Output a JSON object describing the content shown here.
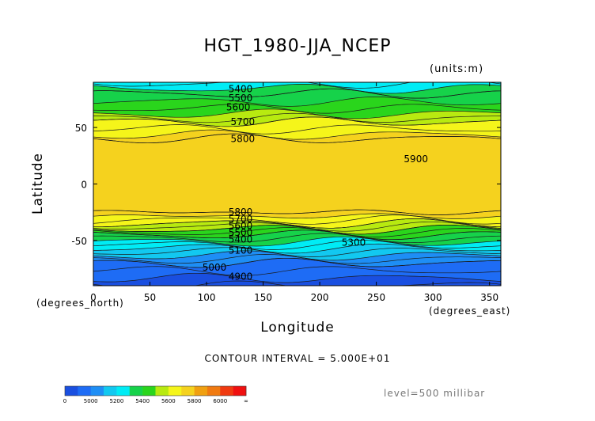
{
  "chart_data": {
    "type": "heatmap",
    "title": "HGT_1980-JJA_NCEP",
    "units_note": "(units:m)",
    "xlabel": "Longitude",
    "ylabel": "Latitude",
    "x_axis_note": "(degrees_east)",
    "y_axis_note": "(degrees_north)",
    "xlim": [
      0,
      360
    ],
    "ylim": [
      -90,
      90
    ],
    "x_ticks": [
      0,
      50,
      100,
      150,
      200,
      250,
      300,
      350
    ],
    "y_ticks": [
      -50,
      0,
      50
    ],
    "contour_interval_text": "CONTOUR INTERVAL = 5.000E+01",
    "level_text": "level=500 millibar",
    "color_bins": [
      {
        "from": 4900,
        "to": 5000,
        "color": "#1a4fe0"
      },
      {
        "from": 5000,
        "to": 5100,
        "color": "#1e6cf5"
      },
      {
        "from": 5100,
        "to": 5200,
        "color": "#1e8ef5"
      },
      {
        "from": 5200,
        "to": 5300,
        "color": "#12c8f0"
      },
      {
        "from": 5300,
        "to": 5400,
        "color": "#00ecf5"
      },
      {
        "from": 5400,
        "to": 5500,
        "color": "#16d24a"
      },
      {
        "from": 5500,
        "to": 5600,
        "color": "#2ad51c"
      },
      {
        "from": 5600,
        "to": 5700,
        "color": "#b8ea10"
      },
      {
        "from": 5700,
        "to": 5800,
        "color": "#f5f51a"
      },
      {
        "from": 5800,
        "to": 5900,
        "color": "#f5d21e"
      },
      {
        "from": 5900,
        "to": 6000,
        "color": "#f0a010"
      },
      {
        "from": 6000,
        "to": 6100,
        "color": "#f07a10"
      },
      {
        "from": 6100,
        "to": 6200,
        "color": "#f03a10"
      },
      {
        "from": 6200,
        "to": 6300,
        "color": "#f01010"
      }
    ],
    "zonal_profile": [
      {
        "lat": 90,
        "value": 5340
      },
      {
        "lat": 80,
        "value": 5450
      },
      {
        "lat": 70,
        "value": 5520
      },
      {
        "lat": 60,
        "value": 5620
      },
      {
        "lat": 55,
        "value": 5700
      },
      {
        "lat": 45,
        "value": 5780
      },
      {
        "lat": 40,
        "value": 5850
      },
      {
        "lat": 0,
        "value": 5880
      },
      {
        "lat": -25,
        "value": 5850
      },
      {
        "lat": -30,
        "value": 5780
      },
      {
        "lat": -35,
        "value": 5700
      },
      {
        "lat": -40,
        "value": 5600
      },
      {
        "lat": -45,
        "value": 5500
      },
      {
        "lat": -50,
        "value": 5420
      },
      {
        "lat": -55,
        "value": 5330
      },
      {
        "lat": -62,
        "value": 5220
      },
      {
        "lat": -70,
        "value": 5100
      },
      {
        "lat": -90,
        "value": 4950
      }
    ],
    "contour_labels": [
      {
        "text": "5400",
        "lon": 130,
        "lat": 84
      },
      {
        "text": "5500",
        "lon": 130,
        "lat": 76
      },
      {
        "text": "5600",
        "lon": 128,
        "lat": 68
      },
      {
        "text": "5700",
        "lon": 132,
        "lat": 55
      },
      {
        "text": "5800",
        "lon": 132,
        "lat": 40
      },
      {
        "text": "5900",
        "lon": 285,
        "lat": 22
      },
      {
        "text": "5800",
        "lon": 130,
        "lat": -25
      },
      {
        "text": "5700",
        "lon": 130,
        "lat": -31
      },
      {
        "text": "5600",
        "lon": 130,
        "lat": -37
      },
      {
        "text": "5500",
        "lon": 130,
        "lat": -43
      },
      {
        "text": "5400",
        "lon": 130,
        "lat": -49
      },
      {
        "text": "5300",
        "lon": 230,
        "lat": -52
      },
      {
        "text": "5100",
        "lon": 130,
        "lat": -59
      },
      {
        "text": "5000",
        "lon": 107,
        "lat": -74
      },
      {
        "text": "4900",
        "lon": 130,
        "lat": -82
      }
    ],
    "colorbar_ticks": [
      "0",
      "5000",
      "5200",
      "5400",
      "5600",
      "5800",
      "6000",
      "∞"
    ],
    "grid": false,
    "legend_placement": "bottom-left colorbar"
  }
}
